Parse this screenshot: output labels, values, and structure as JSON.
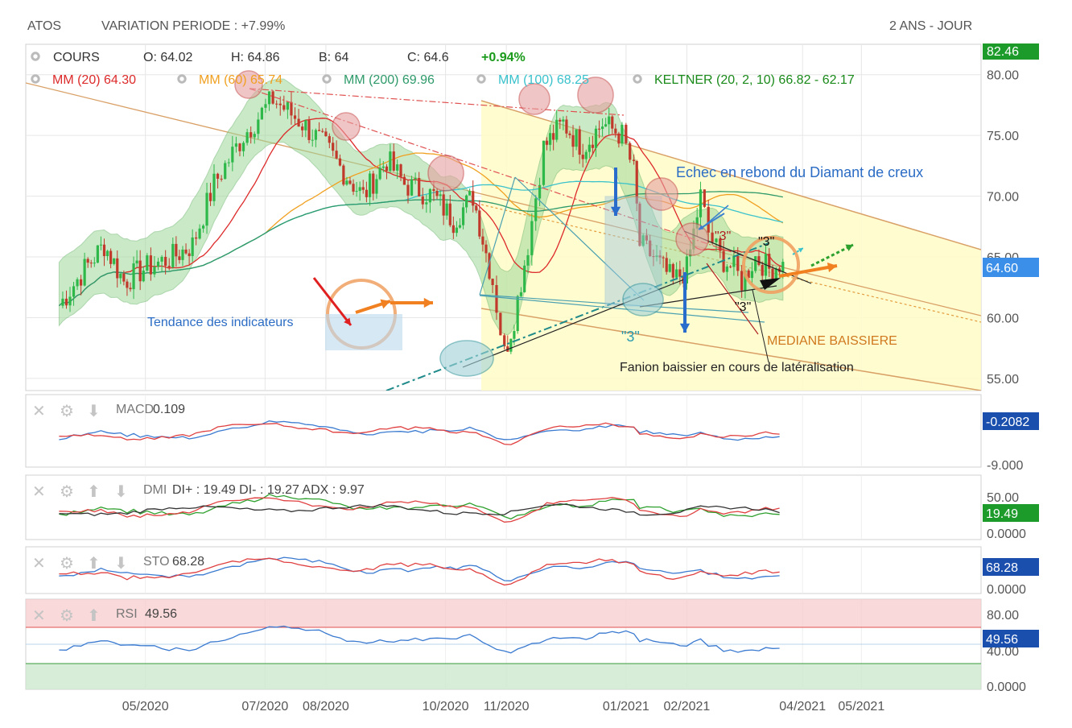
{
  "header": {
    "symbol": "ATOS",
    "variation": "VARIATION PERIODE : +7.99%",
    "period": "2 ANS - JOUR"
  },
  "ohlc": {
    "cours_label": "COURS",
    "open": "O: 64.02",
    "high": "H: 64.86",
    "low": "B: 64",
    "close": "C: 64.6",
    "change": "+0.94%"
  },
  "indicators": [
    {
      "label": "MM (20)",
      "value": "64.30",
      "color": "#dd2a2a"
    },
    {
      "label": "MM (60)",
      "value": "65.74",
      "color": "#f0a020"
    },
    {
      "label": "MM (200)",
      "value": "69.96",
      "color": "#2e9a6a"
    },
    {
      "label": "MM (100)",
      "value": "68.25",
      "color": "#39c2cc"
    },
    {
      "label": "KELTNER (20, 2, 10)",
      "value": "66.82 - 62.17",
      "color": "#1a8a1a"
    }
  ],
  "annotations": {
    "echec": "Echec en rebond du Diamant de creux",
    "tendance": "Tendance des indicateurs",
    "mediane": "MEDIANE BAISSIERE",
    "fanion": "Fanion baissier en cours de latéralisation",
    "three": "\"3\""
  },
  "colors": {
    "up": "#2fb84a",
    "down": "#c0392b",
    "keltner_fill": "#9ed89a",
    "channel_fill": "#fffbc8",
    "price_badge": "#3b8fe8",
    "high_badge": "#1c9a2a"
  },
  "chart_data": [
    {
      "type": "candlestick",
      "name": "main",
      "x_ticks": [
        "05/2020",
        "07/2020",
        "08/2020",
        "10/2020",
        "11/2020",
        "01/2021",
        "02/2021",
        "04/2021",
        "05/2021"
      ],
      "y_ticks": [
        "80.00",
        "75.00",
        "70.00",
        "65.00",
        "60.00",
        "55.00"
      ],
      "ylim": [
        54,
        82.5
      ],
      "badges": {
        "top": "82.46",
        "last": "64.60"
      },
      "close_path": [
        {
          "x": "2020-03-18",
          "y": 61
        },
        {
          "x": "2020-03-31",
          "y": 64
        },
        {
          "x": "2020-04-10",
          "y": 66
        },
        {
          "x": "2020-04-20",
          "y": 63
        },
        {
          "x": "2020-04-30",
          "y": 64
        },
        {
          "x": "2020-05-15",
          "y": 65
        },
        {
          "x": "2020-05-25",
          "y": 66
        },
        {
          "x": "2020-06-05",
          "y": 71
        },
        {
          "x": "2020-06-20",
          "y": 75
        },
        {
          "x": "2020-07-05",
          "y": 78
        },
        {
          "x": "2020-07-20",
          "y": 76
        },
        {
          "x": "2020-08-01",
          "y": 74
        },
        {
          "x": "2020-08-10",
          "y": 72
        },
        {
          "x": "2020-08-20",
          "y": 70
        },
        {
          "x": "2020-09-01",
          "y": 73
        },
        {
          "x": "2020-09-10",
          "y": 71
        },
        {
          "x": "2020-09-25",
          "y": 70
        },
        {
          "x": "2020-10-05",
          "y": 68
        },
        {
          "x": "2020-10-15",
          "y": 70
        },
        {
          "x": "2020-10-25",
          "y": 63
        },
        {
          "x": "2020-10-31",
          "y": 57
        },
        {
          "x": "2020-11-05",
          "y": 60
        },
        {
          "x": "2020-11-12",
          "y": 66
        },
        {
          "x": "2020-11-20",
          "y": 74
        },
        {
          "x": "2020-11-30",
          "y": 76
        },
        {
          "x": "2020-12-10",
          "y": 74
        },
        {
          "x": "2020-12-20",
          "y": 76
        },
        {
          "x": "2020-12-30",
          "y": 75
        },
        {
          "x": "2021-01-05",
          "y": 72
        },
        {
          "x": "2021-01-08",
          "y": 66
        },
        {
          "x": "2021-01-15",
          "y": 65
        },
        {
          "x": "2021-01-25",
          "y": 63
        },
        {
          "x": "2021-02-01",
          "y": 64
        },
        {
          "x": "2021-02-08",
          "y": 70
        },
        {
          "x": "2021-02-12",
          "y": 67
        },
        {
          "x": "2021-02-18",
          "y": 65
        },
        {
          "x": "2021-02-25",
          "y": 64
        },
        {
          "x": "2021-03-01",
          "y": 63
        },
        {
          "x": "2021-03-08",
          "y": 65
        },
        {
          "x": "2021-03-15",
          "y": 64
        },
        {
          "x": "2021-03-22",
          "y": 64.6
        }
      ]
    },
    {
      "type": "line",
      "name": "MACD",
      "label": "MACD",
      "value": "0.109",
      "badge": "-0.2082",
      "y_ticks": [
        "-9.000"
      ]
    },
    {
      "type": "line",
      "name": "DMI",
      "label": "DMI",
      "value": "DI+ : 19.49 DI- : 19.27 ADX : 9.97",
      "badge": "19.49",
      "y_ticks": [
        "50.00",
        "0.0000"
      ]
    },
    {
      "type": "line",
      "name": "STO",
      "label": "STO",
      "value": "68.28",
      "badge": "68.28",
      "y_ticks": [
        "0.0000"
      ]
    },
    {
      "type": "line",
      "name": "RSI",
      "label": "RSI",
      "value": "49.56",
      "badge": "49.56",
      "y_ticks": [
        "80.00",
        "40.00",
        "0.0000"
      ]
    }
  ]
}
